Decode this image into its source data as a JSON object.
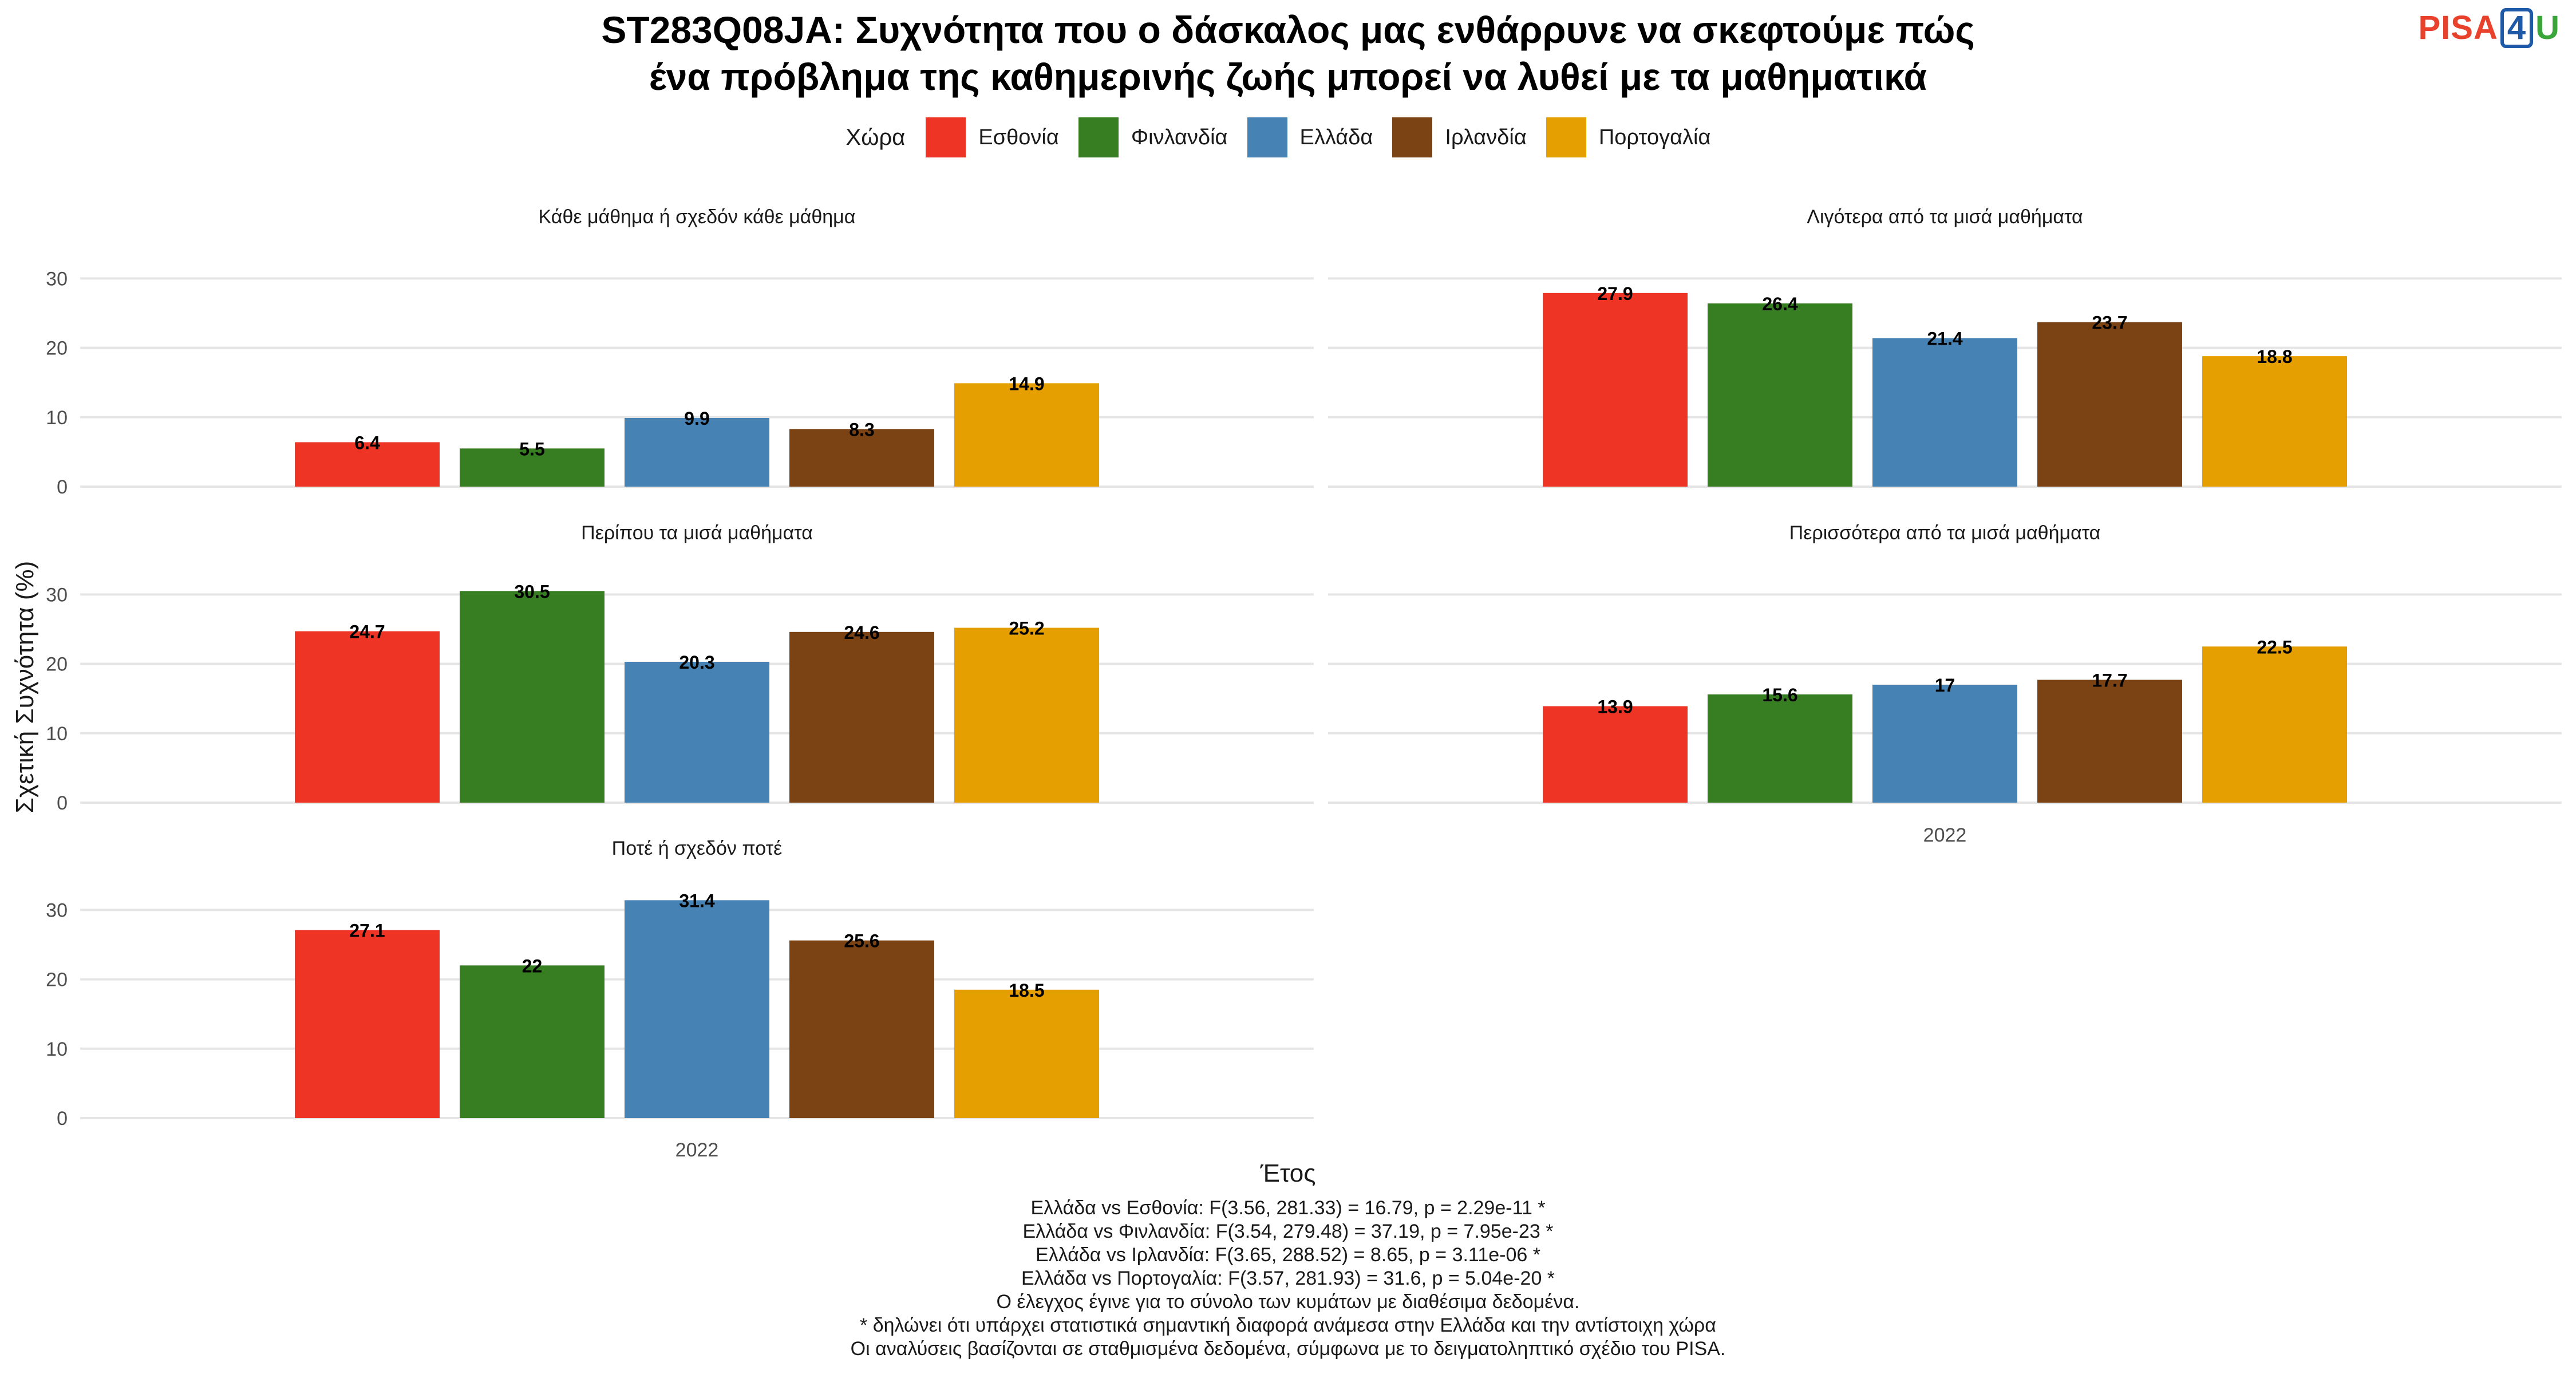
{
  "title_lines": [
    "ST283Q08JA: Συχνότητα που ο δάσκαλος μας ενθάρρυνε να σκεφτούμε πώς",
    "ένα πρόβλημα της καθημερινής ζωής μπορεί να λυθεί με τα μαθηματικά"
  ],
  "logo": {
    "pisa": "PISA",
    "four": "4",
    "u": "U"
  },
  "legend": {
    "title": "Χώρα",
    "items": [
      {
        "label": "Εσθονία",
        "color": "#ee3424"
      },
      {
        "label": "Φινλανδία",
        "color": "#377e22"
      },
      {
        "label": "Ελλάδα",
        "color": "#4682b4"
      },
      {
        "label": "Ιρλανδία",
        "color": "#7b4214"
      },
      {
        "label": "Πορτογαλία",
        "color": "#e69f00"
      }
    ]
  },
  "footer_lines": [
    "Ελλάδα vs Εσθονία: F(3.56, 281.33) = 16.79, p = 2.29e-11 *",
    "Ελλάδα vs Φινλανδία: F(3.54, 279.48) = 37.19, p = 7.95e-23 *",
    "Ελλάδα vs Ιρλανδία: F(3.65, 288.52) = 8.65, p = 3.11e-06 *",
    "Ελλάδα vs Πορτογαλία: F(3.57, 281.93) = 31.6, p = 5.04e-20 *",
    "Ο έλεγχος έγινε για το σύνολο των κυμάτων με διαθέσιμα δεδομένα.",
    "* δηλώνει ότι υπάρχει στατιστικά σημαντική διαφορά ανάμεσα στην Ελλάδα και την αντίστοιχη χώρα",
    "Οι αναλύσεις βασίζονται σε σταθμισμένα δεδομένα, σύμφωνα με το δειγματοληπτικό σχέδιο του PISA."
  ],
  "chart_data": {
    "type": "bar",
    "xlabel": "Έτος",
    "ylabel": "Σχετική Συχνότητα (%)",
    "ylim": [
      0,
      33
    ],
    "yticks": [
      0,
      10,
      20,
      30
    ],
    "x_category": "2022",
    "series_names": [
      "Εσθονία",
      "Φινλανδία",
      "Ελλάδα",
      "Ιρλανδία",
      "Πορτογαλία"
    ],
    "colors": [
      "#ee3424",
      "#377e22",
      "#4682b4",
      "#7b4214",
      "#e69f00"
    ],
    "facets": [
      {
        "title": "Κάθε μάθημα ή σχεδόν κάθε μάθημα",
        "values": [
          6.4,
          5.5,
          9.9,
          8.3,
          14.9
        ],
        "labels": [
          "6.4",
          "5.5",
          "9.9",
          "8.3",
          "14.9"
        ]
      },
      {
        "title": "Λιγότερα από τα μισά μαθήματα",
        "values": [
          27.9,
          26.4,
          21.4,
          23.7,
          18.8
        ],
        "labels": [
          "27.9",
          "26.4",
          "21.4",
          "23.7",
          "18.8"
        ]
      },
      {
        "title": "Περίπου τα μισά μαθήματα",
        "values": [
          24.7,
          30.5,
          20.3,
          24.6,
          25.2
        ],
        "labels": [
          "24.7",
          "30.5",
          "20.3",
          "24.6",
          "25.2"
        ]
      },
      {
        "title": "Περισσότερα από τα μισά μαθήματα",
        "values": [
          13.9,
          15.6,
          17,
          17.7,
          22.5
        ],
        "labels": [
          "13.9",
          "15.6",
          "17",
          "17.7",
          "22.5"
        ]
      },
      {
        "title": "Ποτέ ή σχεδόν ποτέ",
        "values": [
          27.1,
          22,
          31.4,
          25.6,
          18.5
        ],
        "labels": [
          "27.1",
          "22",
          "31.4",
          "25.6",
          "18.5"
        ]
      }
    ]
  }
}
